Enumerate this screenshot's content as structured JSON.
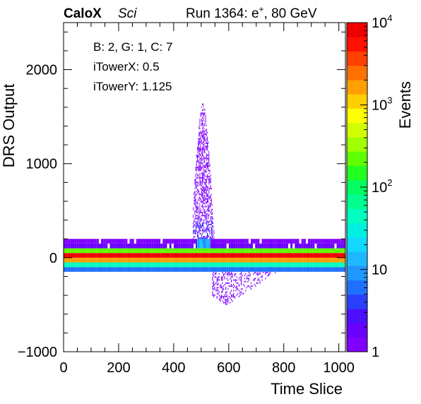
{
  "header": {
    "brand": "CaloX",
    "brand_sub": "Sci",
    "run_prefix": "Run 1364: e",
    "run_sup": "+",
    "run_suffix": ", 80 GeV"
  },
  "stats": {
    "line1": "B: 2, G: 1, C: 7",
    "line2": "iTowerX: 0.5",
    "line3": "iTowerY: 1.125"
  },
  "chart_data": {
    "type": "heatmap",
    "xlabel": "Time Slice",
    "ylabel": "DRS Output",
    "zlabel": "Events",
    "xlim": [
      0,
      1024
    ],
    "ylim": [
      -1000,
      2500
    ],
    "zlim": [
      1,
      10000
    ],
    "z_scale": "log",
    "x_ticks": [
      0,
      200,
      400,
      600,
      800,
      1000
    ],
    "x_tick_labels": [
      "0",
      "200",
      "400",
      "600",
      "800",
      "1000"
    ],
    "y_ticks": [
      -1000,
      0,
      1000,
      2000
    ],
    "y_tick_labels": [
      "−1000",
      "0",
      "1000",
      "2000"
    ],
    "z_ticks": [
      {
        "value": 1,
        "base": "1",
        "exp": ""
      },
      {
        "value": 10,
        "base": "10",
        "exp": ""
      },
      {
        "value": 100,
        "base": "10",
        "exp": "2"
      },
      {
        "value": 1000,
        "base": "10",
        "exp": "3"
      },
      {
        "value": 10000,
        "base": "10",
        "exp": "4"
      }
    ],
    "palette": [
      "#8000ff",
      "#6a00ff",
      "#4a10ff",
      "#2a40ff",
      "#1f70ff",
      "#2096ff",
      "#1eb8ff",
      "#10d8ff",
      "#00f0e0",
      "#00ffc0",
      "#00ff90",
      "#00ff60",
      "#20ff20",
      "#60ff00",
      "#a0ff00",
      "#d0ff00",
      "#ffff00",
      "#ffd000",
      "#ffa000",
      "#ff7000",
      "#ff4000",
      "#ff1000",
      "#ee0000"
    ],
    "pedestal_band": {
      "x": [
        0,
        1024
      ],
      "rows": [
        {
          "y": [
            -150,
            -100
          ],
          "events": 5
        },
        {
          "y": [
            -100,
            -50
          ],
          "events": 40
        },
        {
          "y": [
            -50,
            0
          ],
          "events": 2000
        },
        {
          "y": [
            0,
            50
          ],
          "events": 8000
        },
        {
          "y": [
            50,
            100
          ],
          "events": 200
        },
        {
          "y": [
            100,
            150
          ],
          "events": 2
        },
        {
          "y": [
            150,
            200
          ],
          "events": 1
        }
      ]
    },
    "pulse": {
      "x_range": [
        470,
        560
      ],
      "y_range": [
        0,
        1650
      ],
      "peak_x": 505,
      "peak_y": 1650,
      "events": 1
    },
    "pulse_core": {
      "x_range": [
        485,
        530
      ],
      "y": [
        100,
        200
      ],
      "events": 15
    },
    "undershoot": {
      "x_range": [
        540,
        800
      ],
      "y_range": [
        -500,
        -150
      ],
      "min_x": 590,
      "min_y": -500,
      "events": 1
    },
    "grid": false,
    "legend": "none"
  }
}
